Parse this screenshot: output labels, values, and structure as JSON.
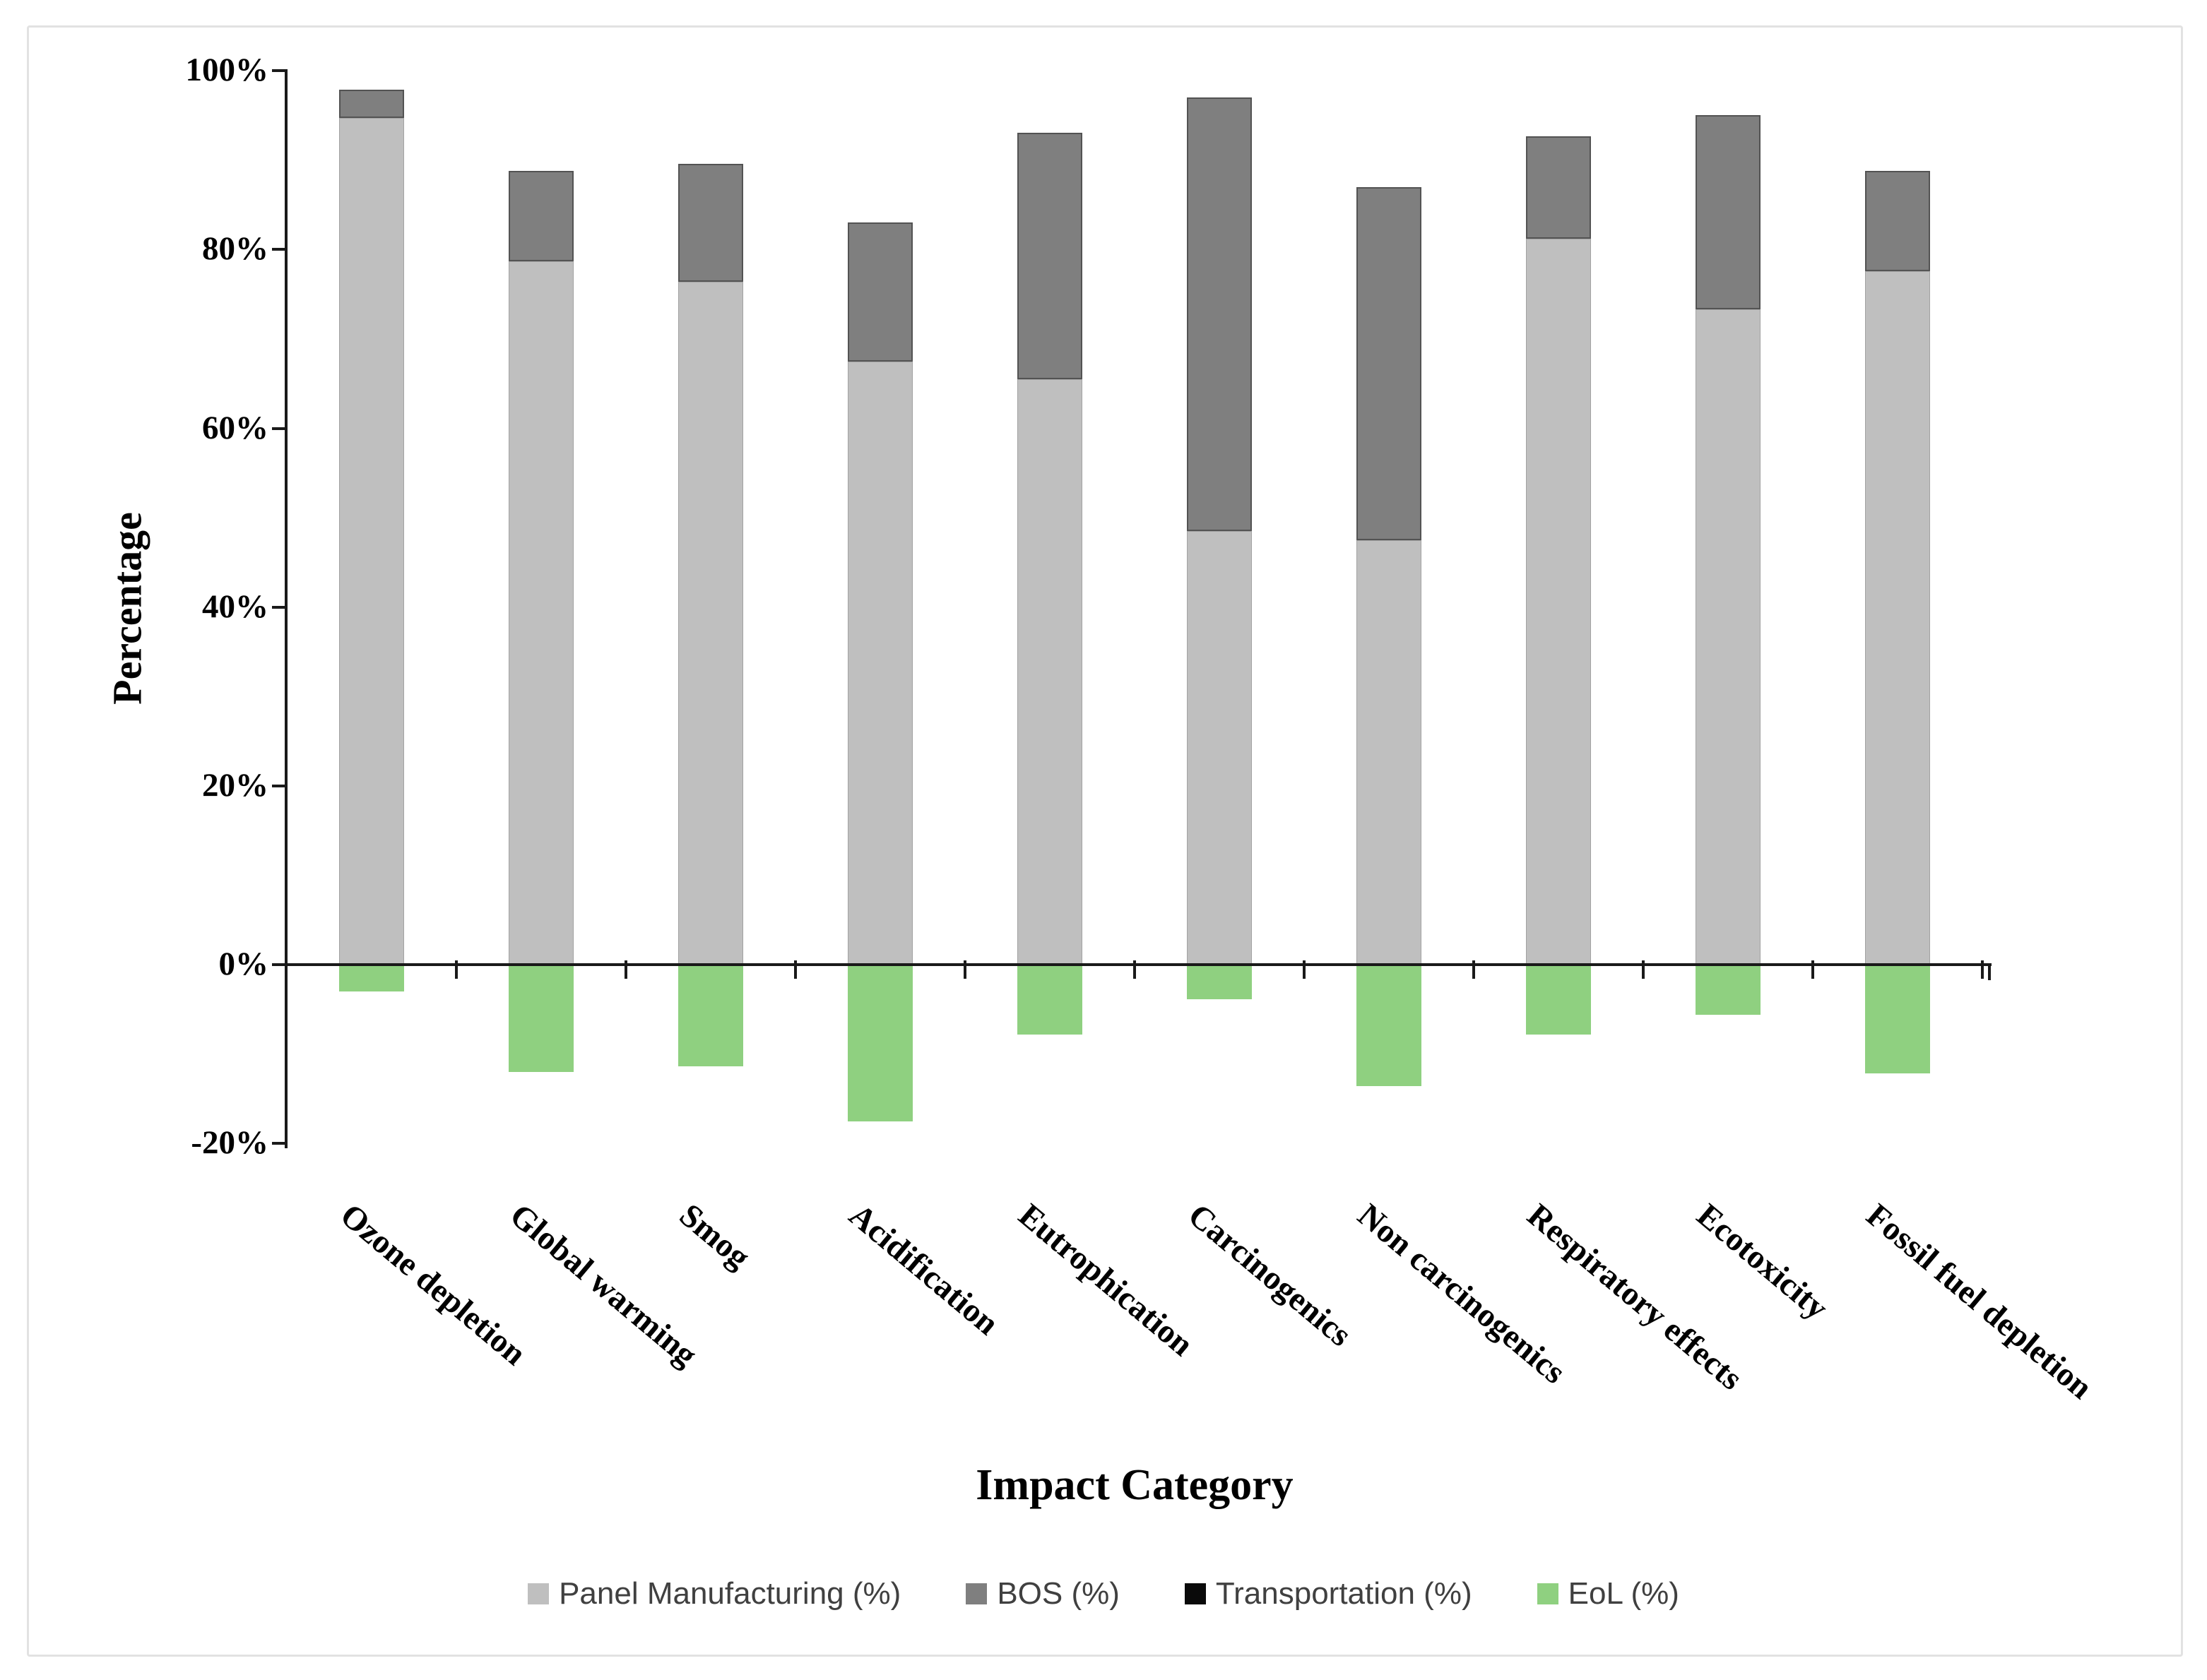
{
  "chart_data": {
    "type": "bar",
    "stacked": true,
    "title": "",
    "xlabel": "Impact Category",
    "ylabel": "Percentage",
    "ylim": [
      -20,
      100
    ],
    "ytick_step": 20,
    "yticks": [
      100,
      80,
      60,
      40,
      20,
      0,
      -20
    ],
    "ytick_labels": [
      "100%",
      "80%",
      "60%",
      "40%",
      "20%",
      "0%",
      "-20%"
    ],
    "grid": false,
    "legend_position": "bottom",
    "categories": [
      "Ozone depletion",
      "Global warming",
      "Smog",
      "Acidification",
      "Eutrophication",
      "Carcinogenics",
      "Non carcinogenics",
      "Respiratory effects",
      "Ecotoxicity",
      "Fossil fuel depletion"
    ],
    "series": [
      {
        "name": "Panel Manufacturing (%)",
        "color": "#BFBFBF",
        "values": [
          94.7,
          78.7,
          76.4,
          67.5,
          65.5,
          48.5,
          47.5,
          81.2,
          73.3,
          77.6
        ]
      },
      {
        "name": "BOS (%)",
        "color": "#7F7F7F",
        "values": [
          3.2,
          10.1,
          13.2,
          15.5,
          27.6,
          48.5,
          39.5,
          11.5,
          21.7,
          11.2
        ]
      },
      {
        "name": "Transportation (%)",
        "color": "#0A0A0A",
        "values": [
          0,
          0,
          0,
          0,
          0,
          0,
          0,
          0,
          0,
          0
        ]
      },
      {
        "name": "EoL (%)",
        "color": "#8FD080",
        "values": [
          -3.0,
          -12.0,
          -11.4,
          -17.5,
          -7.8,
          -3.9,
          -13.6,
          -7.8,
          -5.6,
          -12.2
        ]
      }
    ]
  }
}
